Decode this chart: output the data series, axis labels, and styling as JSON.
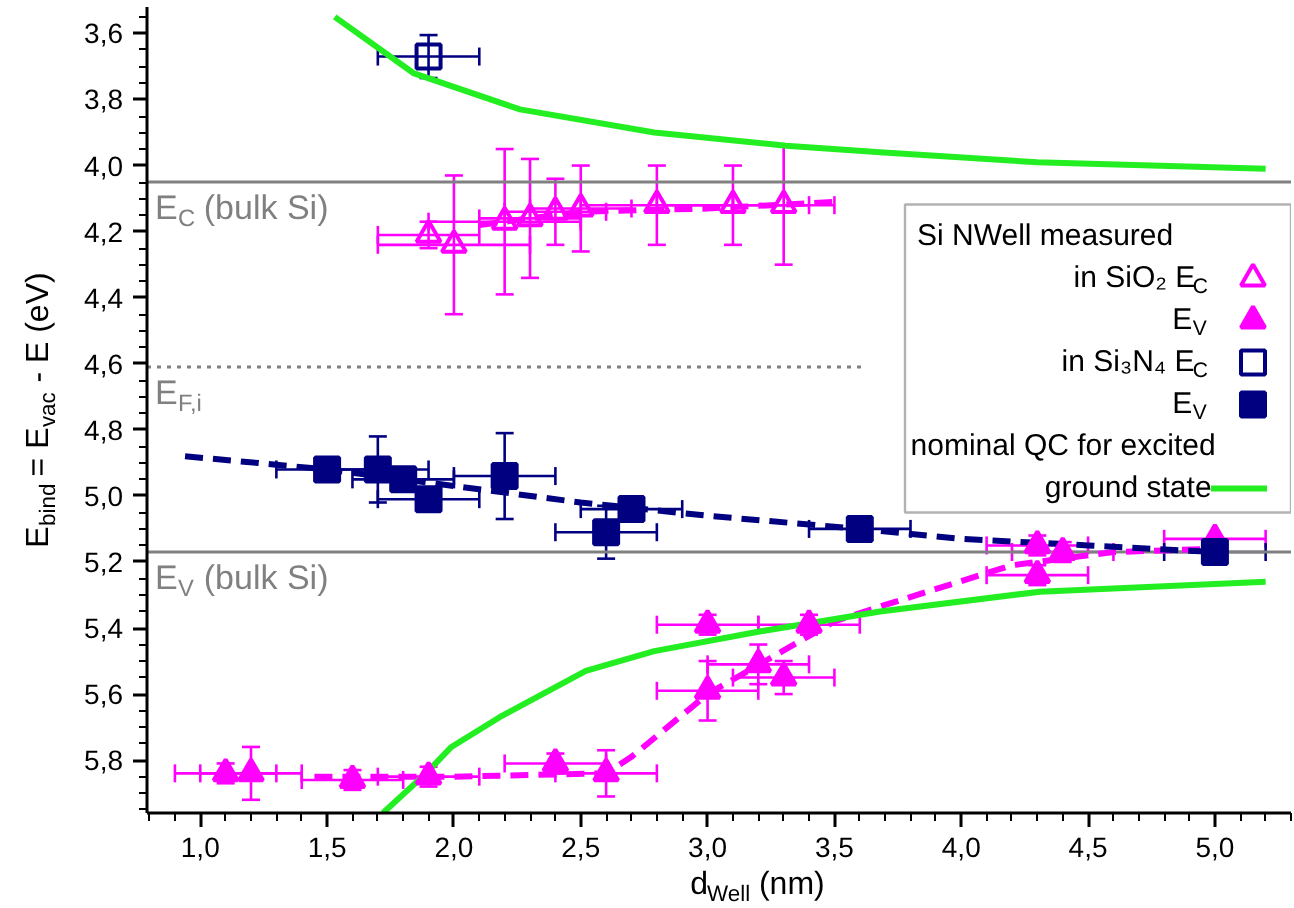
{
  "chart_data": {
    "type": "scatter",
    "xlabel": "d$_{Well}$ (nm)",
    "ylabel": "E$_{bind}$ = E$_{vac}$ - E (eV)",
    "legend_title": "Si NWell  measured",
    "legend": "right",
    "grid": false,
    "xlim": [
      0.79,
      5.3
    ],
    "ylim": [
      5.96,
      3.52
    ],
    "xticks": [
      {
        "value": 1.0,
        "label": "1,0"
      },
      {
        "value": 1.5,
        "label": "1,5"
      },
      {
        "value": 2.0,
        "label": "2,0"
      },
      {
        "value": 2.5,
        "label": "2,5"
      },
      {
        "value": 3.0,
        "label": "3,0"
      },
      {
        "value": 3.5,
        "label": "3,5"
      },
      {
        "value": 4.0,
        "label": "4,0"
      },
      {
        "value": 4.5,
        "label": "4,5"
      },
      {
        "value": 5.0,
        "label": "5,0"
      }
    ],
    "yticks": [
      {
        "value": 3.6,
        "label": "3,6"
      },
      {
        "value": 3.8,
        "label": "3,8"
      },
      {
        "value": 4.0,
        "label": "4,0"
      },
      {
        "value": 4.2,
        "label": "4,2"
      },
      {
        "value": 4.4,
        "label": "4,4"
      },
      {
        "value": 4.6,
        "label": "4,6"
      },
      {
        "value": 4.8,
        "label": "4,8"
      },
      {
        "value": 5.0,
        "label": "5,0"
      },
      {
        "value": 5.2,
        "label": "5,2"
      },
      {
        "value": 5.4,
        "label": "5,4"
      },
      {
        "value": 5.6,
        "label": "5,6"
      },
      {
        "value": 5.8,
        "label": "5,8"
      }
    ],
    "ref_lines": [
      {
        "axis": "y",
        "value": 4.05,
        "label": "E$_{C}$ (bulk Si)",
        "color": "#808080",
        "line_style": "solid"
      },
      {
        "axis": "y",
        "value": 4.61,
        "label": "E$_{F,i}$",
        "color": "#808080",
        "line_style": "dotted"
      },
      {
        "axis": "y",
        "value": 5.17,
        "label": "E$_{V}$ (bulk Si)",
        "color": "#808080",
        "line_style": "solid"
      }
    ],
    "series": [
      {
        "name": "in SiO₂ E$_{C}$",
        "marker": "triangle_open",
        "color": "#ff00ff",
        "x": [
          1.9,
          2.0,
          2.2,
          2.3,
          2.4,
          2.5,
          2.8,
          3.1,
          3.3
        ],
        "values": [
          4.21,
          4.24,
          4.17,
          4.16,
          4.14,
          4.13,
          4.12,
          4.12,
          4.12
        ],
        "errors": [
          0.04,
          0.21,
          0.22,
          0.18,
          0.1,
          0.13,
          0.12,
          0.12,
          0.18
        ],
        "xerrors": [
          0.2,
          0.3,
          0.3,
          0.2,
          0.2,
          0.2,
          0.3,
          0.3,
          0.2
        ]
      },
      {
        "name": "E$_{V}$",
        "marker": "triangle",
        "color": "#ff00ff",
        "x": [
          1.1,
          1.2,
          1.6,
          1.9,
          2.4,
          2.6,
          3.0,
          3.0,
          3.2,
          3.3,
          3.4,
          4.3,
          4.3,
          4.4,
          5.0
        ],
        "values": [
          5.84,
          5.84,
          5.86,
          5.85,
          5.81,
          5.84,
          5.39,
          5.59,
          5.51,
          5.55,
          5.39,
          5.15,
          5.24,
          5.17,
          5.13
        ],
        "errors": [
          0.03,
          0.08,
          0.03,
          0.03,
          0.03,
          0.07,
          0.03,
          0.09,
          0.06,
          0.05,
          0.03,
          0.03,
          0.03,
          0.03,
          null
        ],
        "xerrors": [
          0.2,
          0.2,
          0.2,
          0.2,
          0.2,
          0.2,
          0.2,
          0.2,
          0.2,
          0.2,
          0.2,
          0.2,
          0.2,
          0.2,
          0.2
        ]
      },
      {
        "name": "in Si₃N₄ E$_{C}$",
        "marker": "square_open",
        "color": "#000080",
        "x": [
          1.9
        ],
        "values": [
          3.67
        ],
        "errors": [
          0.065
        ],
        "xerrors": [
          0.2
        ]
      },
      {
        "name": "E$_{V}$",
        "marker": "square",
        "color": "#000080",
        "x": [
          1.5,
          1.7,
          1.8,
          1.9,
          2.2,
          2.6,
          2.7,
          3.6,
          5.0
        ],
        "values": [
          4.92,
          4.92,
          4.95,
          5.01,
          4.94,
          5.11,
          5.04,
          5.1,
          5.17
        ],
        "errors": [
          0.03,
          0.1,
          0.02,
          0.02,
          0.13,
          0.08,
          0.02,
          0.02,
          0.02
        ],
        "xerrors": [
          0.2,
          0.2,
          0.2,
          0.2,
          0.2,
          0.2,
          0.2,
          0.2,
          0.2
        ]
      },
      {
        "type": "line",
        "line_style": "dashed",
        "color": "#ff00ff",
        "x": [
          2.1,
          2.5,
          3.0,
          3.5
        ],
        "values": [
          4.18,
          4.14,
          4.13,
          4.11
        ]
      },
      {
        "type": "line",
        "line_style": "dashed",
        "color": "#ff00ff",
        "x": [
          1.45,
          2.0,
          2.6,
          2.7,
          3.0,
          3.5,
          3.7,
          4.2,
          4.6,
          5.0
        ],
        "values": [
          5.85,
          5.85,
          5.84,
          5.79,
          5.6,
          5.38,
          5.33,
          5.21,
          5.17,
          5.16
        ]
      },
      {
        "type": "line",
        "line_style": "dashed",
        "color": "#000080",
        "x": [
          0.94,
          1.5,
          2.0,
          2.5,
          3.0,
          3.6,
          4.0,
          4.5,
          5.0
        ],
        "values": [
          4.88,
          4.92,
          4.97,
          5.02,
          5.06,
          5.1,
          5.13,
          5.15,
          5.17
        ]
      },
      {
        "name": "nominal QC for excited ground state",
        "type": "line",
        "line_style": "solid",
        "color": "#22ee22",
        "x": [
          1.53,
          1.84,
          2.26,
          2.79,
          3.31,
          3.68,
          4.3,
          5.2
        ],
        "values": [
          3.55,
          3.72,
          3.83,
          3.9,
          3.94,
          3.96,
          3.99,
          4.01
        ]
      },
      {
        "type": "line",
        "line_style": "solid",
        "color": "#22ee22",
        "x": [
          1.72,
          1.89,
          1.99,
          2.18,
          2.52,
          2.79,
          3.21,
          3.68,
          4.31,
          5.2
        ],
        "values": [
          5.96,
          5.84,
          5.76,
          5.67,
          5.53,
          5.47,
          5.41,
          5.35,
          5.29,
          5.26
        ]
      }
    ]
  }
}
